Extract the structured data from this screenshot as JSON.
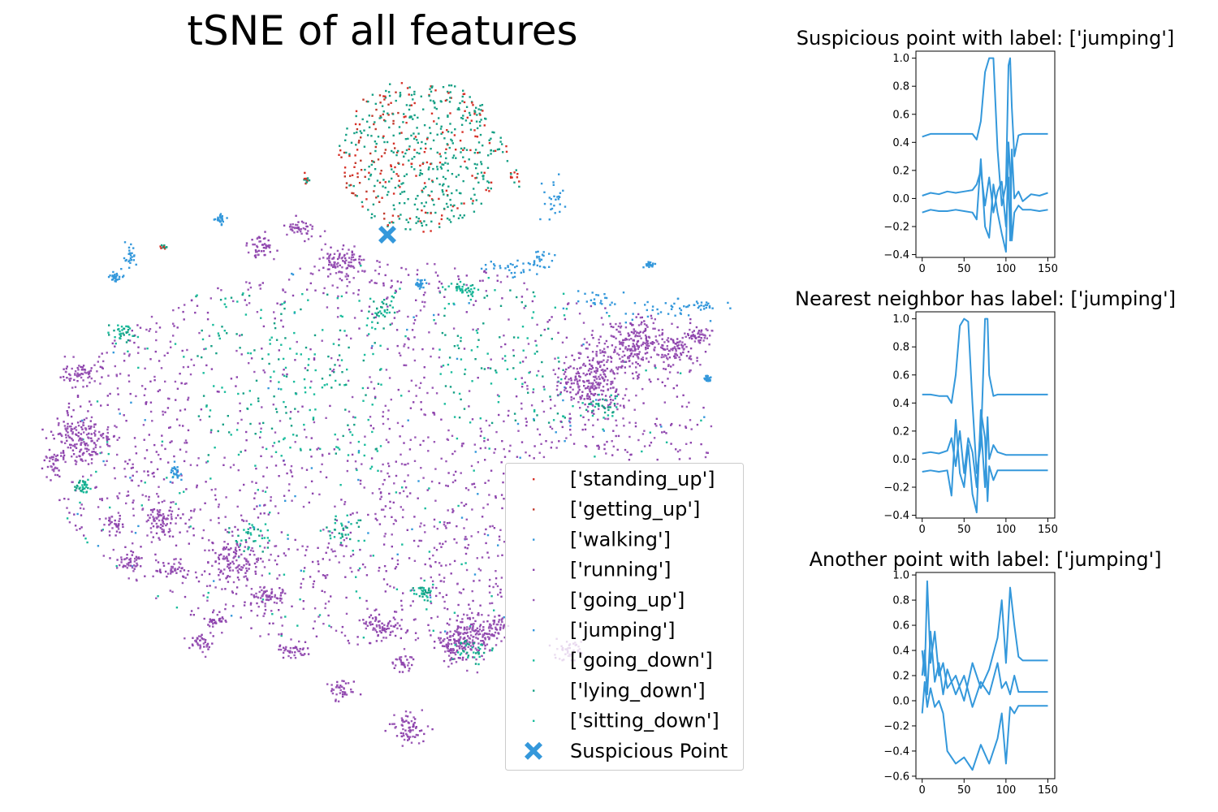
{
  "chart_data": [
    {
      "type": "scatter",
      "title": "tSNE of all features",
      "axes_visible": false,
      "legend_position": "lower right",
      "series": [
        {
          "name": "['standing_up']",
          "color": "#d73027",
          "region": "top cluster (mixed with getting_up)"
        },
        {
          "name": "['getting_up']",
          "color": "#c0392b",
          "region": "top cluster (mixed with standing_up)"
        },
        {
          "name": "['walking']",
          "color": "#3498db",
          "region": "scattered small clusters, right edge"
        },
        {
          "name": "['running']",
          "color": "#8e44ad",
          "region": "main body and outer clusters"
        },
        {
          "name": "['going_up']",
          "color": "#9b59b6",
          "region": "main body and outer clusters"
        },
        {
          "name": "['jumping']",
          "color": "#3498db",
          "region": "small clusters, upper right"
        },
        {
          "name": "['going_down']",
          "color": "#1abc9c",
          "region": "central-left cluster"
        },
        {
          "name": "['lying_down']",
          "color": "#16a085",
          "region": "top cluster"
        },
        {
          "name": "['sitting_down']",
          "color": "#1abc9c",
          "region": "central region"
        }
      ],
      "highlight": {
        "name": "Suspicious Point",
        "marker": "X",
        "color": "#3498db"
      }
    },
    {
      "type": "line",
      "title": "Suspicious point with label: ['jumping']",
      "xlim": [
        0,
        150
      ],
      "ylim": [
        -0.42,
        1.05
      ],
      "x_ticks": [
        0,
        50,
        100,
        150
      ],
      "y_ticks": [
        -0.4,
        -0.2,
        0.0,
        0.2,
        0.4,
        0.6,
        0.8,
        1.0
      ],
      "tick_labels_x": [
        "0",
        "50",
        "100",
        "150"
      ],
      "tick_labels_y": [
        "−0.4",
        "−0.2",
        "0.0",
        "0.2",
        "0.4",
        "0.6",
        "0.8",
        "1.0"
      ],
      "color": "#3498db",
      "series": [
        {
          "x": [
            0,
            10,
            20,
            30,
            40,
            50,
            60,
            65,
            70,
            75,
            80,
            85,
            90,
            95,
            100,
            103,
            105,
            107,
            110,
            115,
            120,
            130,
            140,
            150
          ],
          "values": [
            0.44,
            0.46,
            0.46,
            0.46,
            0.46,
            0.46,
            0.46,
            0.42,
            0.55,
            0.9,
            1.0,
            1.0,
            0.35,
            -0.05,
            0.1,
            0.95,
            1.0,
            0.65,
            0.3,
            0.45,
            0.46,
            0.46,
            0.46,
            0.46
          ]
        },
        {
          "x": [
            0,
            10,
            20,
            30,
            40,
            50,
            60,
            65,
            70,
            75,
            80,
            85,
            90,
            95,
            100,
            103,
            105,
            107,
            110,
            115,
            120,
            130,
            140,
            150
          ],
          "values": [
            0.02,
            0.04,
            0.03,
            0.05,
            0.04,
            0.05,
            0.06,
            0.1,
            0.2,
            -0.05,
            0.15,
            -0.1,
            0.05,
            0.12,
            -0.2,
            0.15,
            -0.3,
            0.35,
            0.0,
            0.05,
            -0.02,
            0.03,
            0.02,
            0.04
          ]
        },
        {
          "x": [
            0,
            10,
            20,
            30,
            40,
            50,
            60,
            65,
            70,
            75,
            80,
            85,
            90,
            95,
            100,
            103,
            105,
            107,
            110,
            115,
            120,
            130,
            140,
            150
          ],
          "values": [
            -0.1,
            -0.08,
            -0.09,
            -0.09,
            -0.08,
            -0.09,
            -0.1,
            -0.15,
            0.28,
            -0.2,
            -0.28,
            0.1,
            -0.1,
            -0.25,
            -0.38,
            0.4,
            0.2,
            -0.3,
            -0.1,
            -0.05,
            -0.08,
            -0.08,
            -0.09,
            -0.08
          ]
        }
      ]
    },
    {
      "type": "line",
      "title": "Nearest neighbor has label: ['jumping']",
      "xlim": [
        0,
        150
      ],
      "ylim": [
        -0.42,
        1.05
      ],
      "x_ticks": [
        0,
        50,
        100,
        150
      ],
      "y_ticks": [
        -0.4,
        -0.2,
        0.0,
        0.2,
        0.4,
        0.6,
        0.8,
        1.0
      ],
      "tick_labels_x": [
        "0",
        "50",
        "100",
        "150"
      ],
      "tick_labels_y": [
        "−0.4",
        "−0.2",
        "0.0",
        "0.2",
        "0.4",
        "0.6",
        "0.8",
        "1.0"
      ],
      "color": "#3498db",
      "series": [
        {
          "x": [
            0,
            10,
            20,
            30,
            35,
            40,
            45,
            50,
            55,
            60,
            65,
            70,
            75,
            78,
            80,
            85,
            90,
            100,
            110,
            120,
            130,
            140,
            150
          ],
          "values": [
            0.46,
            0.46,
            0.45,
            0.45,
            0.4,
            0.6,
            0.95,
            1.0,
            0.98,
            0.4,
            -0.1,
            0.1,
            1.0,
            1.0,
            0.6,
            0.45,
            0.46,
            0.46,
            0.46,
            0.46,
            0.46,
            0.46,
            0.46
          ]
        },
        {
          "x": [
            0,
            10,
            20,
            30,
            35,
            40,
            45,
            50,
            55,
            60,
            65,
            70,
            75,
            78,
            80,
            85,
            90,
            100,
            110,
            120,
            130,
            140,
            150
          ],
          "values": [
            0.04,
            0.05,
            0.04,
            0.06,
            0.15,
            -0.05,
            0.2,
            -0.1,
            0.15,
            0.05,
            -0.2,
            0.25,
            -0.2,
            0.3,
            0.0,
            0.1,
            0.05,
            0.03,
            0.03,
            0.03,
            0.03,
            0.03,
            0.03
          ]
        },
        {
          "x": [
            0,
            10,
            20,
            30,
            35,
            40,
            45,
            50,
            55,
            60,
            65,
            70,
            75,
            78,
            80,
            85,
            90,
            100,
            110,
            120,
            130,
            140,
            150
          ],
          "values": [
            -0.09,
            -0.08,
            -0.09,
            -0.08,
            -0.26,
            0.28,
            -0.1,
            -0.2,
            0.1,
            -0.25,
            -0.38,
            0.35,
            0.15,
            -0.3,
            -0.05,
            -0.15,
            -0.08,
            -0.08,
            -0.08,
            -0.08,
            -0.08,
            -0.08,
            -0.08
          ]
        }
      ]
    },
    {
      "type": "line",
      "title": "Another point with label: ['jumping']",
      "xlim": [
        0,
        150
      ],
      "ylim": [
        -0.62,
        1.02
      ],
      "x_ticks": [
        0,
        50,
        100,
        150
      ],
      "y_ticks": [
        -0.6,
        -0.4,
        -0.2,
        0.0,
        0.2,
        0.4,
        0.6,
        0.8,
        1.0
      ],
      "tick_labels_x": [
        "0",
        "50",
        "100",
        "150"
      ],
      "tick_labels_y": [
        "−0.6",
        "−0.4",
        "−0.2",
        "0.0",
        "0.2",
        "0.4",
        "0.6",
        "0.8",
        "1.0"
      ],
      "color": "#3498db",
      "series": [
        {
          "x": [
            0,
            3,
            6,
            10,
            15,
            20,
            25,
            30,
            40,
            50,
            60,
            70,
            80,
            90,
            95,
            100,
            105,
            110,
            115,
            120,
            130,
            140,
            150
          ],
          "values": [
            0.4,
            0.2,
            0.95,
            0.3,
            0.55,
            0.2,
            0.3,
            0.1,
            0.2,
            0.0,
            0.3,
            0.1,
            0.25,
            0.5,
            0.8,
            0.3,
            0.9,
            0.6,
            0.35,
            0.32,
            0.32,
            0.32,
            0.32
          ]
        },
        {
          "x": [
            0,
            3,
            6,
            10,
            15,
            20,
            25,
            30,
            40,
            50,
            60,
            70,
            80,
            90,
            95,
            100,
            105,
            110,
            115,
            120,
            130,
            140,
            150
          ],
          "values": [
            0.2,
            0.4,
            0.05,
            0.55,
            0.15,
            0.3,
            0.05,
            0.25,
            0.05,
            0.2,
            -0.05,
            0.15,
            0.05,
            0.3,
            0.1,
            0.15,
            0.05,
            0.2,
            0.07,
            0.07,
            0.07,
            0.07,
            0.07
          ]
        },
        {
          "x": [
            0,
            3,
            6,
            10,
            15,
            20,
            25,
            30,
            40,
            50,
            60,
            70,
            80,
            90,
            95,
            100,
            105,
            110,
            115,
            120,
            130,
            140,
            150
          ],
          "values": [
            -0.1,
            0.15,
            -0.05,
            0.1,
            -0.05,
            0.0,
            -0.1,
            -0.4,
            -0.5,
            -0.45,
            -0.55,
            -0.35,
            -0.5,
            -0.3,
            -0.1,
            -0.5,
            -0.05,
            -0.1,
            -0.04,
            -0.04,
            -0.04,
            -0.04,
            -0.04
          ]
        }
      ]
    }
  ]
}
